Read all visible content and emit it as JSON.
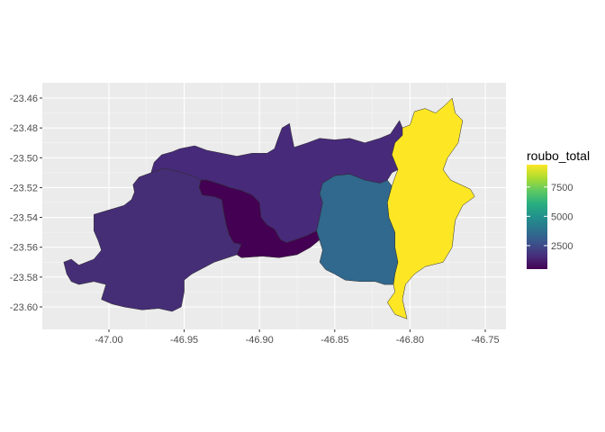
{
  "chart_data": {
    "type": "choropleth",
    "background_color": "#EBEBEB",
    "grid": true,
    "x_axis": {
      "ticks": [
        "-47.00",
        "-46.95",
        "-46.90",
        "-46.85",
        "-46.80",
        "-46.75"
      ],
      "tick_values": [
        -47.0,
        -46.95,
        -46.9,
        -46.85,
        -46.8,
        -46.75
      ]
    },
    "y_axis": {
      "ticks": [
        "-23.46",
        "-23.48",
        "-23.50",
        "-23.52",
        "-23.54",
        "-23.56",
        "-23.58",
        "-23.60"
      ],
      "tick_values": [
        -23.46,
        -23.48,
        -23.5,
        -23.52,
        -23.54,
        -23.56,
        -23.58,
        -23.6
      ]
    },
    "legend": {
      "title": "roubo_total",
      "position": "right",
      "breaks": [
        2500,
        5000,
        7500
      ],
      "labels": [
        "2500",
        "5000",
        "7500"
      ],
      "min": 500,
      "max": 9400,
      "colormap": "viridis"
    },
    "regions": [
      {
        "id": "west",
        "value": 1100,
        "color": "#462E76",
        "coords": [
          [
            -47.03,
            -23.57
          ],
          [
            -47.025,
            -23.568
          ],
          [
            -47.02,
            -23.572
          ],
          [
            -47.015,
            -23.57
          ],
          [
            -47.01,
            -23.568
          ],
          [
            -47.005,
            -23.562
          ],
          [
            -47.007,
            -23.556
          ],
          [
            -47.01,
            -23.549
          ],
          [
            -47.01,
            -23.538
          ],
          [
            -47.0,
            -23.535
          ],
          [
            -46.99,
            -23.532
          ],
          [
            -46.985,
            -23.528
          ],
          [
            -46.983,
            -23.523
          ],
          [
            -46.984,
            -23.518
          ],
          [
            -46.98,
            -23.513
          ],
          [
            -46.972,
            -23.51
          ],
          [
            -46.963,
            -23.507
          ],
          [
            -46.955,
            -23.509
          ],
          [
            -46.945,
            -23.512
          ],
          [
            -46.939,
            -23.515
          ],
          [
            -46.94,
            -23.52
          ],
          [
            -46.938,
            -23.525
          ],
          [
            -46.93,
            -23.526
          ],
          [
            -46.925,
            -23.528
          ],
          [
            -46.924,
            -23.535
          ],
          [
            -46.922,
            -23.545
          ],
          [
            -46.92,
            -23.552
          ],
          [
            -46.917,
            -23.557
          ],
          [
            -46.912,
            -23.558
          ],
          [
            -46.915,
            -23.565
          ],
          [
            -46.93,
            -23.57
          ],
          [
            -46.945,
            -23.578
          ],
          [
            -46.95,
            -23.582
          ],
          [
            -46.95,
            -23.59
          ],
          [
            -46.952,
            -23.6
          ],
          [
            -46.958,
            -23.603
          ],
          [
            -46.967,
            -23.601
          ],
          [
            -46.978,
            -23.602
          ],
          [
            -46.99,
            -23.6
          ],
          [
            -46.998,
            -23.598
          ],
          [
            -47.005,
            -23.595
          ],
          [
            -47.002,
            -23.585
          ],
          [
            -47.01,
            -23.583
          ],
          [
            -47.02,
            -23.585
          ],
          [
            -47.025,
            -23.583
          ],
          [
            -47.028,
            -23.578
          ]
        ]
      },
      {
        "id": "north",
        "value": 1200,
        "color": "#472A7A",
        "coords": [
          [
            -46.972,
            -23.51
          ],
          [
            -46.97,
            -23.503
          ],
          [
            -46.965,
            -23.498
          ],
          [
            -46.958,
            -23.496
          ],
          [
            -46.953,
            -23.494
          ],
          [
            -46.943,
            -23.492
          ],
          [
            -46.935,
            -23.495
          ],
          [
            -46.925,
            -23.497
          ],
          [
            -46.915,
            -23.499
          ],
          [
            -46.905,
            -23.497
          ],
          [
            -46.895,
            -23.497
          ],
          [
            -46.89,
            -23.494
          ],
          [
            -46.888,
            -23.488
          ],
          [
            -46.885,
            -23.48
          ],
          [
            -46.88,
            -23.477
          ],
          [
            -46.879,
            -23.483
          ],
          [
            -46.877,
            -23.493
          ],
          [
            -46.868,
            -23.49
          ],
          [
            -46.86,
            -23.487
          ],
          [
            -46.85,
            -23.488
          ],
          [
            -46.84,
            -23.487
          ],
          [
            -46.83,
            -23.49
          ],
          [
            -46.82,
            -23.487
          ],
          [
            -46.813,
            -23.484
          ],
          [
            -46.807,
            -23.475
          ],
          [
            -46.805,
            -23.48
          ],
          [
            -46.805,
            -23.485
          ],
          [
            -46.81,
            -23.49
          ],
          [
            -46.812,
            -23.498
          ],
          [
            -46.81,
            -23.503
          ],
          [
            -46.808,
            -23.508
          ],
          [
            -46.812,
            -23.51
          ],
          [
            -46.815,
            -23.515
          ],
          [
            -46.82,
            -23.517
          ],
          [
            -46.83,
            -23.515
          ],
          [
            -46.84,
            -23.511
          ],
          [
            -46.85,
            -23.512
          ],
          [
            -46.858,
            -23.517
          ],
          [
            -46.86,
            -23.524
          ],
          [
            -46.858,
            -23.53
          ],
          [
            -46.86,
            -23.54
          ],
          [
            -46.862,
            -23.549
          ],
          [
            -46.868,
            -23.552
          ],
          [
            -46.876,
            -23.555
          ],
          [
            -46.882,
            -23.557
          ],
          [
            -46.886,
            -23.555
          ],
          [
            -46.89,
            -23.548
          ],
          [
            -46.895,
            -23.545
          ],
          [
            -46.899,
            -23.54
          ],
          [
            -46.9,
            -23.53
          ],
          [
            -46.905,
            -23.525
          ],
          [
            -46.912,
            -23.522
          ],
          [
            -46.92,
            -23.52
          ],
          [
            -46.925,
            -23.518
          ],
          [
            -46.935,
            -23.515
          ],
          [
            -46.939,
            -23.515
          ],
          [
            -46.945,
            -23.512
          ],
          [
            -46.955,
            -23.509
          ],
          [
            -46.963,
            -23.507
          ]
        ]
      },
      {
        "id": "center",
        "value": 500,
        "color": "#440154",
        "coords": [
          [
            -46.939,
            -23.515
          ],
          [
            -46.935,
            -23.515
          ],
          [
            -46.925,
            -23.518
          ],
          [
            -46.92,
            -23.52
          ],
          [
            -46.912,
            -23.522
          ],
          [
            -46.905,
            -23.525
          ],
          [
            -46.9,
            -23.53
          ],
          [
            -46.899,
            -23.54
          ],
          [
            -46.895,
            -23.545
          ],
          [
            -46.89,
            -23.548
          ],
          [
            -46.886,
            -23.555
          ],
          [
            -46.882,
            -23.557
          ],
          [
            -46.876,
            -23.555
          ],
          [
            -46.868,
            -23.552
          ],
          [
            -46.862,
            -23.549
          ],
          [
            -46.86,
            -23.555
          ],
          [
            -46.866,
            -23.56
          ],
          [
            -46.875,
            -23.565
          ],
          [
            -46.887,
            -23.567
          ],
          [
            -46.898,
            -23.566
          ],
          [
            -46.912,
            -23.567
          ],
          [
            -46.915,
            -23.565
          ],
          [
            -46.912,
            -23.558
          ],
          [
            -46.917,
            -23.557
          ],
          [
            -46.92,
            -23.552
          ],
          [
            -46.922,
            -23.545
          ],
          [
            -46.924,
            -23.535
          ],
          [
            -46.925,
            -23.528
          ],
          [
            -46.93,
            -23.526
          ],
          [
            -46.938,
            -23.525
          ],
          [
            -46.94,
            -23.52
          ]
        ]
      },
      {
        "id": "east-center",
        "value": 3600,
        "color": "#31688E",
        "coords": [
          [
            -46.858,
            -23.517
          ],
          [
            -46.85,
            -23.512
          ],
          [
            -46.84,
            -23.511
          ],
          [
            -46.83,
            -23.515
          ],
          [
            -46.82,
            -23.517
          ],
          [
            -46.815,
            -23.515
          ],
          [
            -46.812,
            -23.519
          ],
          [
            -46.815,
            -23.53
          ],
          [
            -46.814,
            -23.54
          ],
          [
            -46.81,
            -23.55
          ],
          [
            -46.81,
            -23.56
          ],
          [
            -46.808,
            -23.57
          ],
          [
            -46.81,
            -23.578
          ],
          [
            -46.811,
            -23.585
          ],
          [
            -46.817,
            -23.585
          ],
          [
            -46.823,
            -23.583
          ],
          [
            -46.833,
            -23.583
          ],
          [
            -46.843,
            -23.582
          ],
          [
            -46.85,
            -23.578
          ],
          [
            -46.856,
            -23.575
          ],
          [
            -46.86,
            -23.57
          ],
          [
            -46.858,
            -23.562
          ],
          [
            -46.862,
            -23.549
          ],
          [
            -46.86,
            -23.54
          ],
          [
            -46.858,
            -23.53
          ],
          [
            -46.86,
            -23.524
          ]
        ]
      },
      {
        "id": "east",
        "value": 9400,
        "color": "#FDE725",
        "coords": [
          [
            -46.812,
            -23.519
          ],
          [
            -46.81,
            -23.513
          ],
          [
            -46.808,
            -23.508
          ],
          [
            -46.81,
            -23.503
          ],
          [
            -46.812,
            -23.498
          ],
          [
            -46.81,
            -23.49
          ],
          [
            -46.805,
            -23.485
          ],
          [
            -46.805,
            -23.48
          ],
          [
            -46.8,
            -23.478
          ],
          [
            -46.797,
            -23.469
          ],
          [
            -46.79,
            -23.467
          ],
          [
            -46.783,
            -23.47
          ],
          [
            -46.777,
            -23.465
          ],
          [
            -46.772,
            -23.46
          ],
          [
            -46.77,
            -23.47
          ],
          [
            -46.765,
            -23.475
          ],
          [
            -46.768,
            -23.49
          ],
          [
            -46.775,
            -23.5
          ],
          [
            -46.778,
            -23.508
          ],
          [
            -46.773,
            -23.515
          ],
          [
            -46.76,
            -23.521
          ],
          [
            -46.757,
            -23.526
          ],
          [
            -46.765,
            -23.532
          ],
          [
            -46.77,
            -23.542
          ],
          [
            -46.772,
            -23.56
          ],
          [
            -46.778,
            -23.57
          ],
          [
            -46.79,
            -23.573
          ],
          [
            -46.797,
            -23.578
          ],
          [
            -46.803,
            -23.585
          ],
          [
            -46.805,
            -23.595
          ],
          [
            -46.802,
            -23.608
          ],
          [
            -46.81,
            -23.605
          ],
          [
            -46.815,
            -23.597
          ],
          [
            -46.81,
            -23.59
          ],
          [
            -46.811,
            -23.585
          ],
          [
            -46.81,
            -23.578
          ],
          [
            -46.808,
            -23.57
          ],
          [
            -46.81,
            -23.56
          ],
          [
            -46.81,
            -23.55
          ],
          [
            -46.814,
            -23.54
          ],
          [
            -46.815,
            -23.53
          ]
        ]
      }
    ]
  }
}
